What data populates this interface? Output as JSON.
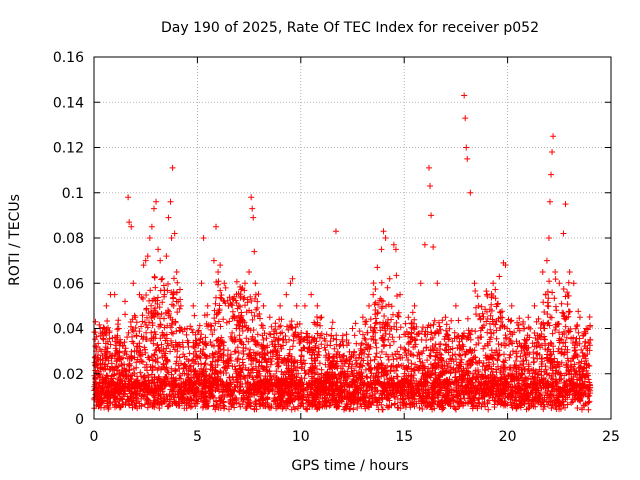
{
  "chart_data": {
    "type": "scatter",
    "title": "Day 190 of 2025, Rate Of TEC Index for receiver p052",
    "xlabel": "GPS time / hours",
    "ylabel": "ROTI / TECUs",
    "xlim": [
      0,
      25
    ],
    "ylim": [
      0,
      0.16
    ],
    "xticks": [
      0,
      5,
      10,
      15,
      20,
      25
    ],
    "xtick_labels": [
      "0",
      "5",
      "10",
      "15",
      "20",
      "25"
    ],
    "yticks": [
      0,
      0.02,
      0.04,
      0.06,
      0.08,
      0.1,
      0.12,
      0.14,
      0.16
    ],
    "ytick_labels": [
      "0",
      "0.02",
      "0.04",
      "0.06",
      "0.08",
      "0.1",
      "0.12",
      "0.14",
      "0.16"
    ],
    "grid": true,
    "marker": "+",
    "color": "#ff0000",
    "series": [
      {
        "name": "ROTI",
        "points": [
          [
            0.1,
            0.03
          ],
          [
            0.3,
            0.04
          ],
          [
            0.5,
            0.04
          ],
          [
            0.6,
            0.05
          ],
          [
            0.8,
            0.055
          ],
          [
            1.0,
            0.055
          ],
          [
            1.2,
            0.04
          ],
          [
            1.5,
            0.052
          ],
          [
            1.65,
            0.098
          ],
          [
            1.7,
            0.087
          ],
          [
            1.8,
            0.085
          ],
          [
            1.9,
            0.06
          ],
          [
            2.0,
            0.045
          ],
          [
            2.2,
            0.055
          ],
          [
            2.4,
            0.068
          ],
          [
            2.5,
            0.07
          ],
          [
            2.6,
            0.072
          ],
          [
            2.7,
            0.08
          ],
          [
            2.8,
            0.085
          ],
          [
            2.9,
            0.093
          ],
          [
            3.0,
            0.096
          ],
          [
            3.1,
            0.075
          ],
          [
            3.2,
            0.07
          ],
          [
            3.3,
            0.062
          ],
          [
            3.4,
            0.055
          ],
          [
            3.5,
            0.072
          ],
          [
            3.6,
            0.089
          ],
          [
            3.7,
            0.096
          ],
          [
            3.75,
            0.08
          ],
          [
            3.8,
            0.111
          ],
          [
            3.9,
            0.082
          ],
          [
            4.0,
            0.065
          ],
          [
            4.2,
            0.05
          ],
          [
            4.5,
            0.04
          ],
          [
            4.8,
            0.05
          ],
          [
            5.2,
            0.06
          ],
          [
            5.3,
            0.08
          ],
          [
            5.5,
            0.05
          ],
          [
            5.8,
            0.07
          ],
          [
            5.9,
            0.085
          ],
          [
            6.0,
            0.065
          ],
          [
            6.1,
            0.068
          ],
          [
            6.3,
            0.06
          ],
          [
            6.5,
            0.05
          ],
          [
            6.8,
            0.045
          ],
          [
            7.0,
            0.05
          ],
          [
            7.3,
            0.06
          ],
          [
            7.5,
            0.065
          ],
          [
            7.6,
            0.098
          ],
          [
            7.65,
            0.093
          ],
          [
            7.7,
            0.089
          ],
          [
            7.75,
            0.074
          ],
          [
            7.8,
            0.06
          ],
          [
            8.2,
            0.05
          ],
          [
            8.5,
            0.045
          ],
          [
            9.0,
            0.05
          ],
          [
            9.3,
            0.055
          ],
          [
            9.5,
            0.06
          ],
          [
            9.6,
            0.062
          ],
          [
            9.8,
            0.05
          ],
          [
            10.2,
            0.05
          ],
          [
            10.5,
            0.055
          ],
          [
            10.8,
            0.05
          ],
          [
            11.0,
            0.045
          ],
          [
            11.5,
            0.04
          ],
          [
            11.7,
            0.083
          ],
          [
            12.0,
            0.035
          ],
          [
            12.5,
            0.04
          ],
          [
            13.0,
            0.045
          ],
          [
            13.3,
            0.05
          ],
          [
            13.5,
            0.055
          ],
          [
            13.7,
            0.067
          ],
          [
            13.9,
            0.075
          ],
          [
            14.0,
            0.083
          ],
          [
            14.1,
            0.08
          ],
          [
            14.3,
            0.062
          ],
          [
            14.5,
            0.077
          ],
          [
            14.6,
            0.075
          ],
          [
            14.8,
            0.055
          ],
          [
            15.2,
            0.045
          ],
          [
            15.5,
            0.05
          ],
          [
            15.8,
            0.06
          ],
          [
            16.0,
            0.077
          ],
          [
            16.2,
            0.111
          ],
          [
            16.25,
            0.103
          ],
          [
            16.3,
            0.09
          ],
          [
            16.4,
            0.076
          ],
          [
            16.6,
            0.06
          ],
          [
            17.0,
            0.045
          ],
          [
            17.5,
            0.05
          ],
          [
            17.9,
            0.143
          ],
          [
            17.95,
            0.133
          ],
          [
            18.0,
            0.12
          ],
          [
            18.05,
            0.115
          ],
          [
            18.2,
            0.1
          ],
          [
            18.4,
            0.06
          ],
          [
            18.6,
            0.05
          ],
          [
            19.0,
            0.055
          ],
          [
            19.3,
            0.06
          ],
          [
            19.6,
            0.063
          ],
          [
            19.8,
            0.069
          ],
          [
            19.9,
            0.068
          ],
          [
            20.2,
            0.05
          ],
          [
            20.5,
            0.04
          ],
          [
            21.0,
            0.045
          ],
          [
            21.3,
            0.05
          ],
          [
            21.7,
            0.065
          ],
          [
            21.9,
            0.07
          ],
          [
            22.0,
            0.08
          ],
          [
            22.05,
            0.096
          ],
          [
            22.1,
            0.108
          ],
          [
            22.15,
            0.118
          ],
          [
            22.2,
            0.125
          ],
          [
            22.3,
            0.065
          ],
          [
            22.5,
            0.06
          ],
          [
            22.7,
            0.082
          ],
          [
            22.8,
            0.095
          ],
          [
            23.0,
            0.065
          ],
          [
            23.2,
            0.06
          ],
          [
            23.5,
            0.045
          ],
          [
            23.8,
            0.04
          ],
          [
            24.0,
            0.035
          ]
        ]
      }
    ]
  }
}
